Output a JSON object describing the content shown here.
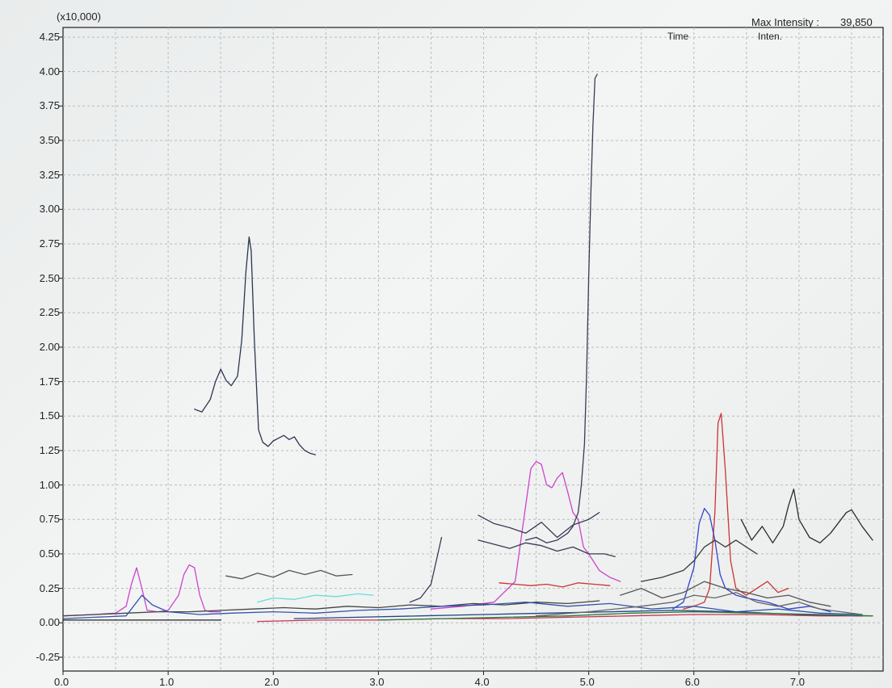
{
  "header": {
    "scale_label": "(x10,000)",
    "max_intensity_label": "Max Intensity :",
    "max_intensity_value": "39,850",
    "time_col": "Time",
    "inten_col": "Inten."
  },
  "chart_data": {
    "type": "line",
    "title": "",
    "xlabel": "",
    "ylabel": "",
    "xlim": [
      0,
      7.8
    ],
    "ylim": [
      -0.35,
      4.32
    ],
    "grid": true,
    "x_ticks": [
      0.0,
      1.0,
      2.0,
      3.0,
      4.0,
      5.0,
      6.0,
      7.0
    ],
    "x_tick_labels": [
      "0.0",
      "1.0",
      "2.0",
      "3.0",
      "4.0",
      "5.0",
      "6.0",
      "7.0"
    ],
    "y_ticks": [
      -0.25,
      0.0,
      0.25,
      0.5,
      0.75,
      1.0,
      1.25,
      1.5,
      1.75,
      2.0,
      2.25,
      2.5,
      2.75,
      3.0,
      3.25,
      3.5,
      3.75,
      4.0,
      4.25
    ],
    "y_tick_labels": [
      "-0.25",
      "0.00",
      "0.25",
      "0.50",
      "0.75",
      "1.00",
      "1.25",
      "1.50",
      "1.75",
      "2.00",
      "2.25",
      "2.50",
      "2.75",
      "3.00",
      "3.25",
      "3.50",
      "3.75",
      "4.00",
      "4.25"
    ],
    "series": [
      {
        "color": "#2c3550",
        "x": [
          1.25,
          1.32,
          1.4,
          1.45,
          1.5,
          1.55,
          1.6,
          1.66,
          1.7,
          1.74,
          1.77,
          1.79,
          1.82,
          1.86,
          1.9,
          1.95,
          2.0,
          2.05,
          2.1,
          2.15,
          2.2,
          2.25,
          2.3,
          2.35,
          2.4
        ],
        "y": [
          1.55,
          1.53,
          1.62,
          1.75,
          1.84,
          1.76,
          1.72,
          1.79,
          2.05,
          2.55,
          2.8,
          2.7,
          2.05,
          1.4,
          1.31,
          1.28,
          1.32,
          1.34,
          1.36,
          1.33,
          1.35,
          1.29,
          1.25,
          1.23,
          1.22
        ]
      },
      {
        "color": "#cc44cc",
        "x": [
          0.0,
          0.3,
          0.5,
          0.6,
          0.65,
          0.7,
          0.75,
          0.8,
          0.9,
          1.0,
          1.1,
          1.15,
          1.2,
          1.25,
          1.3,
          1.35,
          1.4,
          1.45,
          1.5
        ],
        "y": [
          0.05,
          0.06,
          0.07,
          0.12,
          0.28,
          0.4,
          0.25,
          0.09,
          0.08,
          0.09,
          0.2,
          0.35,
          0.42,
          0.4,
          0.2,
          0.09,
          0.08,
          0.08,
          0.08
        ]
      },
      {
        "color": "#cc44cc",
        "x": [
          3.5,
          3.8,
          4.1,
          4.3,
          4.4,
          4.45,
          4.5,
          4.55,
          4.6,
          4.65,
          4.7,
          4.75,
          4.8,
          4.85,
          4.9,
          4.95,
          5.0,
          5.1,
          5.2,
          5.3
        ],
        "y": [
          0.1,
          0.12,
          0.15,
          0.3,
          0.85,
          1.12,
          1.17,
          1.15,
          1.0,
          0.98,
          1.05,
          1.09,
          0.95,
          0.8,
          0.75,
          0.55,
          0.5,
          0.38,
          0.33,
          0.3
        ]
      },
      {
        "color": "#3a3a55",
        "x": [
          3.3,
          3.4,
          3.5,
          3.55,
          3.6
        ],
        "y": [
          0.15,
          0.18,
          0.28,
          0.45,
          0.62
        ]
      },
      {
        "color": "#3a3a55",
        "x": [
          4.4,
          4.5,
          4.6,
          4.7,
          4.8,
          4.85,
          4.9,
          4.93,
          4.96,
          4.98,
          5.0,
          5.02,
          5.04,
          5.06,
          5.08
        ],
        "y": [
          0.6,
          0.62,
          0.58,
          0.6,
          0.65,
          0.7,
          0.8,
          1.0,
          1.3,
          1.8,
          2.5,
          3.1,
          3.6,
          3.95,
          3.98
        ]
      },
      {
        "color": "#3a3a55",
        "x": [
          3.95,
          4.1,
          4.25,
          4.4,
          4.55,
          4.7,
          4.85,
          5.0,
          5.1
        ],
        "y": [
          0.78,
          0.72,
          0.69,
          0.65,
          0.73,
          0.62,
          0.71,
          0.75,
          0.8
        ]
      },
      {
        "color": "#3a3a55",
        "x": [
          3.95,
          4.1,
          4.25,
          4.4,
          4.55,
          4.7,
          4.85,
          5.0,
          5.15,
          5.25
        ],
        "y": [
          0.6,
          0.57,
          0.54,
          0.58,
          0.56,
          0.52,
          0.55,
          0.5,
          0.5,
          0.48
        ]
      },
      {
        "color": "#555555",
        "x": [
          1.55,
          1.7,
          1.85,
          2.0,
          2.15,
          2.3,
          2.45,
          2.6,
          2.75
        ],
        "y": [
          0.34,
          0.32,
          0.36,
          0.33,
          0.38,
          0.35,
          0.38,
          0.34,
          0.35
        ]
      },
      {
        "color": "#66dddd",
        "x": [
          1.85,
          2.0,
          2.2,
          2.4,
          2.6,
          2.8,
          2.95
        ],
        "y": [
          0.15,
          0.18,
          0.17,
          0.2,
          0.19,
          0.21,
          0.2
        ]
      },
      {
        "color": "#cc3333",
        "x": [
          4.15,
          4.3,
          4.45,
          4.6,
          4.75,
          4.9,
          5.05,
          5.2
        ],
        "y": [
          0.29,
          0.28,
          0.27,
          0.28,
          0.26,
          0.29,
          0.28,
          0.27
        ]
      },
      {
        "color": "#cc3333",
        "x": [
          5.9,
          6.0,
          6.1,
          6.15,
          6.2,
          6.23,
          6.26,
          6.3,
          6.35,
          6.4,
          6.5,
          6.6,
          6.7,
          6.8,
          6.9
        ],
        "y": [
          0.1,
          0.12,
          0.15,
          0.25,
          0.8,
          1.45,
          1.52,
          1.1,
          0.45,
          0.25,
          0.2,
          0.25,
          0.3,
          0.22,
          0.25
        ]
      },
      {
        "color": "#3344cc",
        "x": [
          5.8,
          5.9,
          6.0,
          6.05,
          6.1,
          6.15,
          6.2,
          6.25,
          6.3,
          6.4,
          6.5,
          6.7,
          6.9,
          7.1,
          7.3
        ],
        "y": [
          0.1,
          0.15,
          0.4,
          0.72,
          0.83,
          0.78,
          0.6,
          0.35,
          0.25,
          0.2,
          0.18,
          0.15,
          0.1,
          0.12,
          0.08
        ]
      },
      {
        "color": "#2a2a2a",
        "x": [
          6.45,
          6.55,
          6.65,
          6.75,
          6.85,
          6.9,
          6.95,
          7.0,
          7.1,
          7.2,
          7.3,
          7.4,
          7.45,
          7.5,
          7.6,
          7.7
        ],
        "y": [
          0.75,
          0.6,
          0.7,
          0.58,
          0.7,
          0.85,
          0.97,
          0.75,
          0.62,
          0.58,
          0.65,
          0.75,
          0.8,
          0.82,
          0.7,
          0.6
        ]
      },
      {
        "color": "#3a3a3a",
        "x": [
          5.5,
          5.7,
          5.9,
          6.0,
          6.1,
          6.2,
          6.3,
          6.4,
          6.5,
          6.6
        ],
        "y": [
          0.3,
          0.33,
          0.38,
          0.45,
          0.55,
          0.6,
          0.55,
          0.6,
          0.55,
          0.5
        ]
      },
      {
        "color": "#555555",
        "x": [
          5.3,
          5.5,
          5.7,
          5.9,
          6.1,
          6.3,
          6.5,
          6.7,
          6.9,
          7.1,
          7.3
        ],
        "y": [
          0.2,
          0.25,
          0.18,
          0.22,
          0.3,
          0.25,
          0.22,
          0.18,
          0.2,
          0.15,
          0.12
        ]
      },
      {
        "color": "#444444",
        "x": [
          0.0,
          0.3,
          0.6,
          0.9,
          1.2,
          1.5,
          1.8,
          2.1,
          2.4,
          2.7,
          3.0,
          3.3,
          3.6,
          3.9,
          4.2,
          4.5,
          4.8,
          5.1
        ],
        "y": [
          0.05,
          0.06,
          0.07,
          0.08,
          0.08,
          0.09,
          0.1,
          0.11,
          0.1,
          0.12,
          0.11,
          0.13,
          0.12,
          0.14,
          0.13,
          0.15,
          0.14,
          0.16
        ]
      },
      {
        "color": "#3355aa",
        "x": [
          0.0,
          0.3,
          0.6,
          0.7,
          0.75,
          0.85,
          1.0,
          1.3,
          1.6,
          2.0,
          2.4,
          2.8,
          3.2,
          3.6,
          4.0,
          4.4,
          4.8,
          5.2,
          5.6,
          6.0,
          6.4,
          6.8,
          7.2,
          7.6
        ],
        "y": [
          0.03,
          0.04,
          0.05,
          0.15,
          0.2,
          0.13,
          0.08,
          0.06,
          0.07,
          0.08,
          0.07,
          0.09,
          0.1,
          0.12,
          0.13,
          0.15,
          0.12,
          0.14,
          0.1,
          0.12,
          0.08,
          0.1,
          0.07,
          0.06
        ]
      },
      {
        "color": "#222222",
        "x": [
          0.0,
          0.5,
          1.0,
          1.5
        ],
        "y": [
          0.02,
          0.02,
          0.02,
          0.02
        ]
      },
      {
        "color": "#cc3355",
        "x": [
          1.85,
          2.4,
          3.0,
          3.6,
          4.2,
          4.8,
          5.4,
          6.0,
          6.6,
          7.2,
          7.7
        ],
        "y": [
          0.01,
          0.02,
          0.02,
          0.03,
          0.03,
          0.04,
          0.05,
          0.06,
          0.06,
          0.05,
          0.05
        ]
      },
      {
        "color": "#224488",
        "x": [
          2.2,
          2.8,
          3.4,
          4.0,
          4.6,
          5.2,
          5.8,
          6.4,
          7.0,
          7.6
        ],
        "y": [
          0.03,
          0.04,
          0.05,
          0.06,
          0.07,
          0.08,
          0.09,
          0.08,
          0.06,
          0.05
        ]
      },
      {
        "color": "#2a7a3a",
        "x": [
          3.0,
          3.6,
          4.2,
          4.8,
          5.4,
          6.0,
          6.6,
          7.2,
          7.7
        ],
        "y": [
          0.02,
          0.03,
          0.04,
          0.05,
          0.07,
          0.08,
          0.07,
          0.06,
          0.05
        ]
      },
      {
        "color": "#666666",
        "x": [
          4.5,
          5.0,
          5.5,
          5.8,
          6.0,
          6.2,
          6.4,
          6.6,
          6.8,
          7.0,
          7.2,
          7.4,
          7.6
        ],
        "y": [
          0.05,
          0.08,
          0.12,
          0.15,
          0.2,
          0.18,
          0.22,
          0.15,
          0.12,
          0.15,
          0.1,
          0.08,
          0.06
        ]
      }
    ]
  }
}
